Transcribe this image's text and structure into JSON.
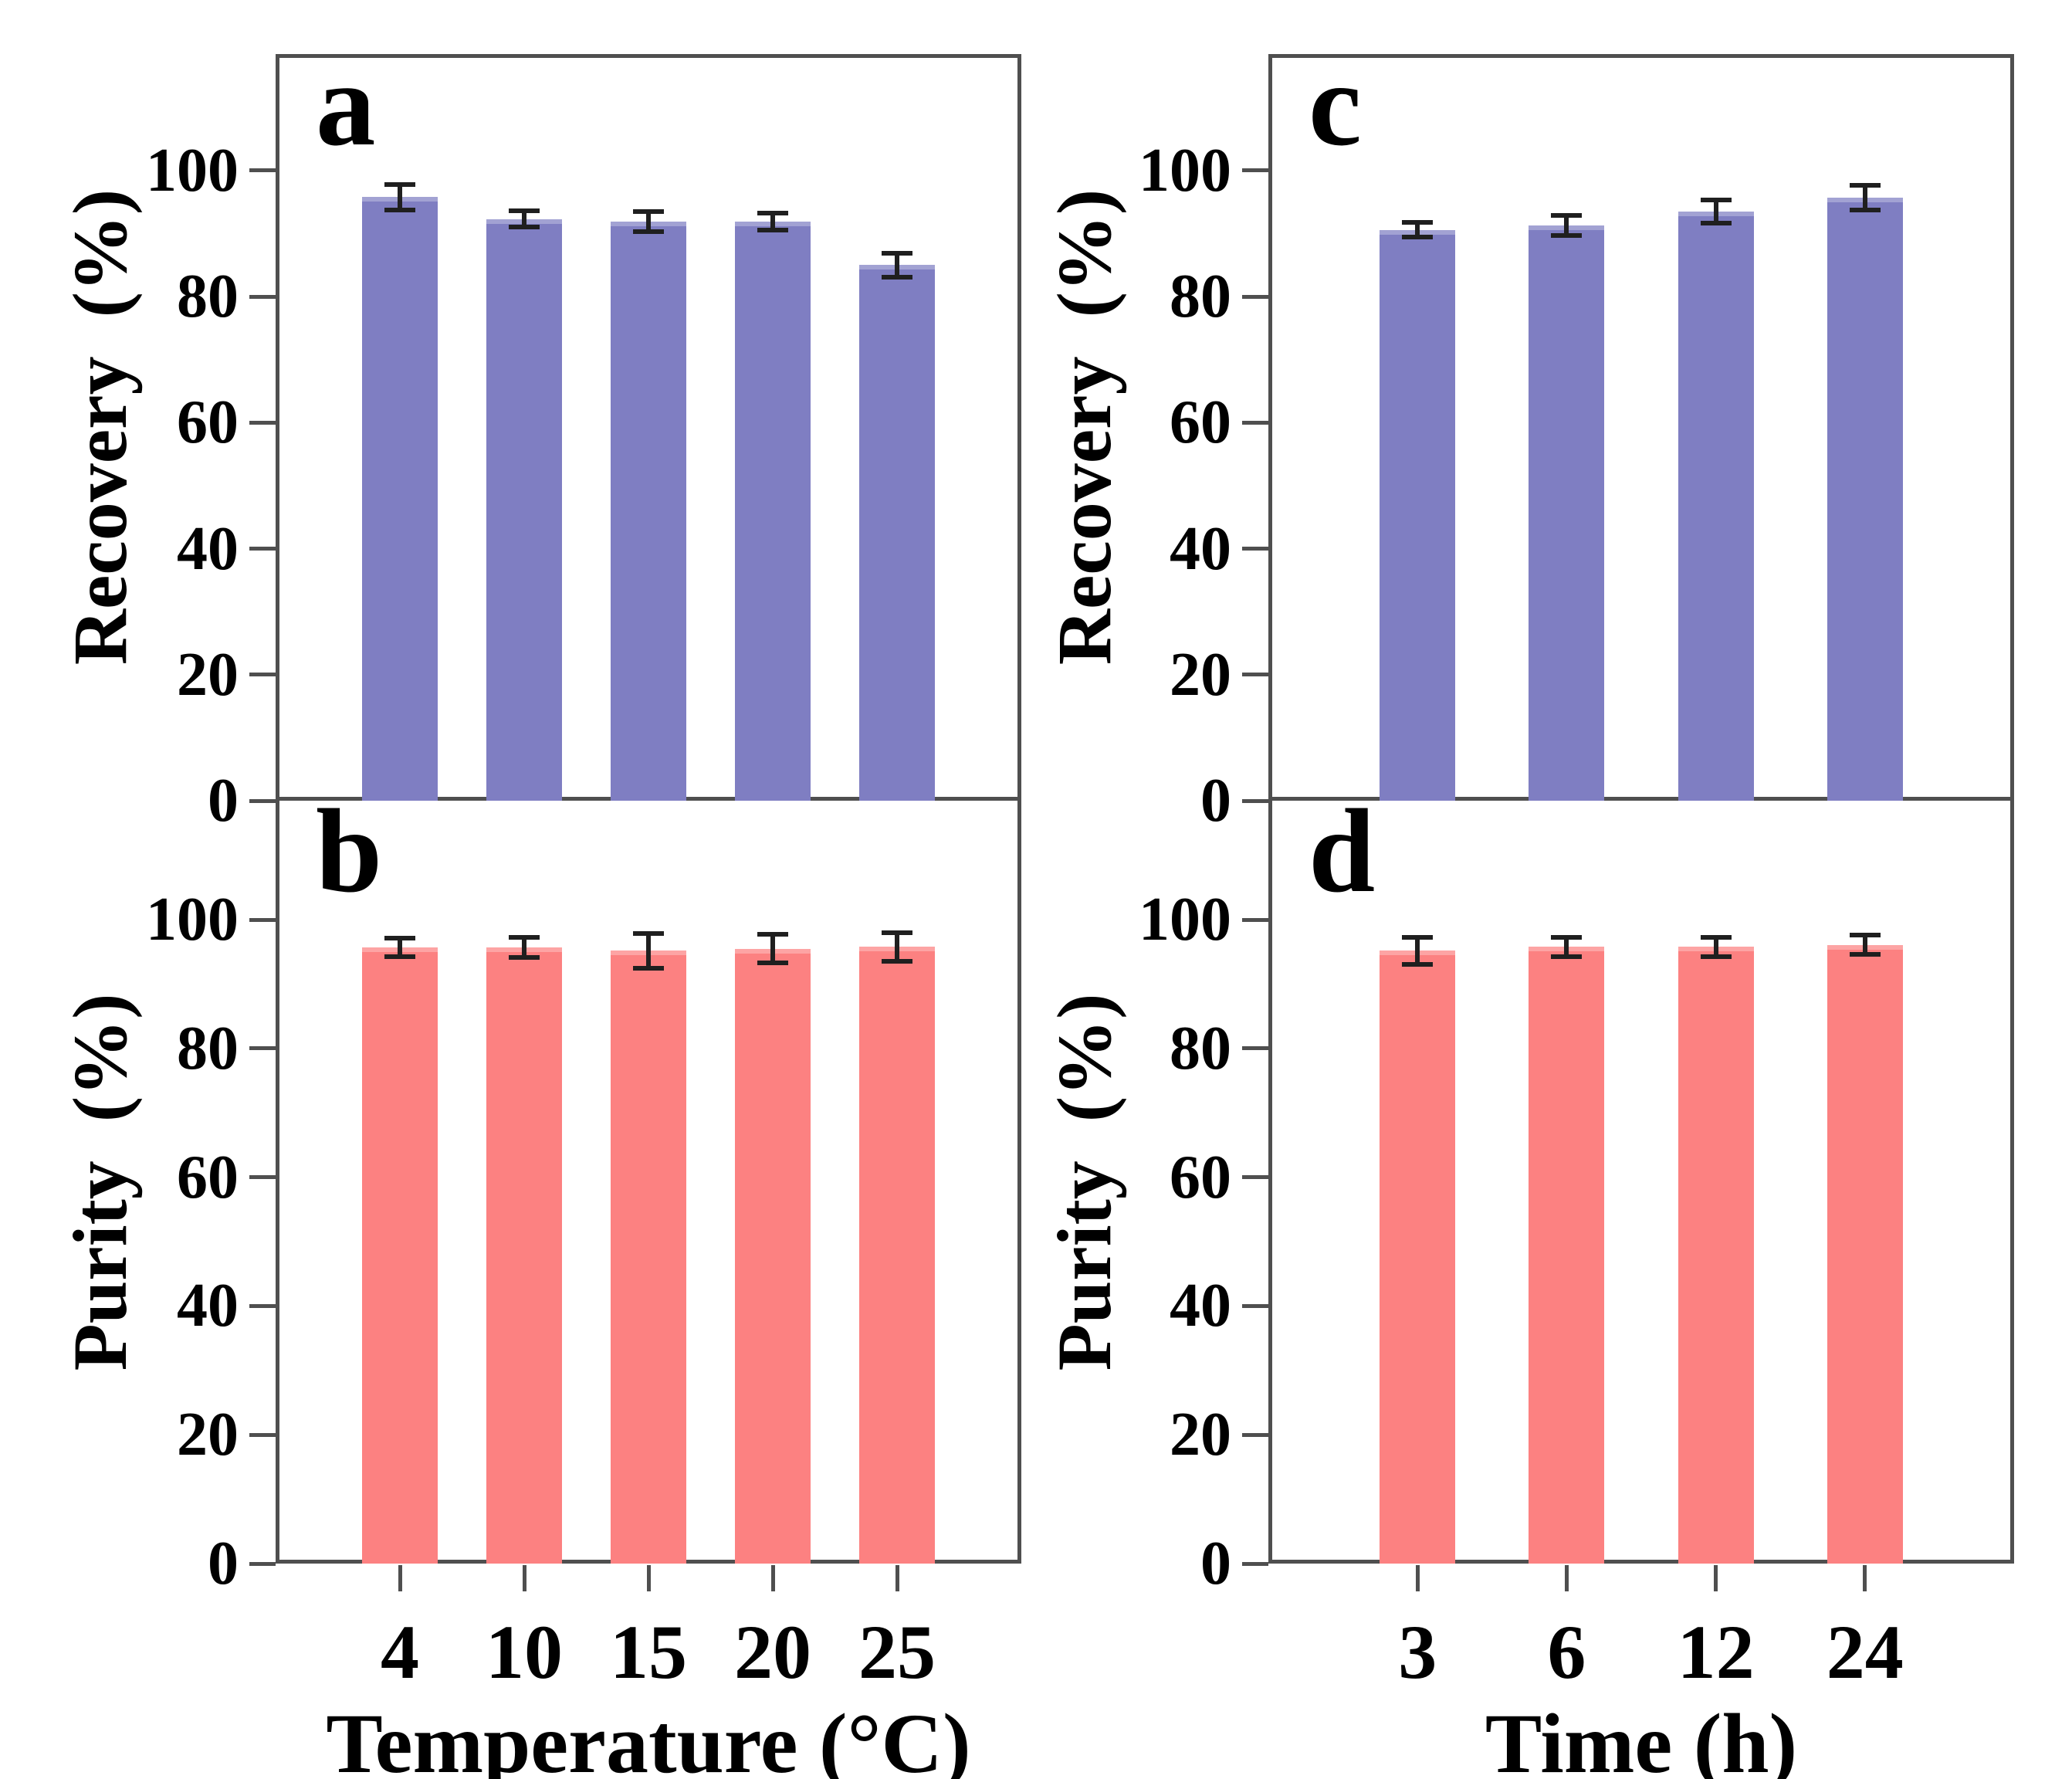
{
  "figure": {
    "background": "#ffffff",
    "palette": {
      "recovery_bar": "#7f7ec2",
      "purity_bar": "#fc8181",
      "axis_line": "#4f4f4f",
      "error_bar": "#1f1f1f",
      "text": "#000000"
    }
  },
  "chart_data": [
    {
      "panel": "a",
      "type": "bar",
      "position": "top-left",
      "ylabel": "Recovery  (%)",
      "xlabel": "",
      "categories": [
        "4",
        "10",
        "15",
        "20",
        "25"
      ],
      "values": [
        95.8,
        92.3,
        91.9,
        91.9,
        85.0
      ],
      "errors": [
        2.0,
        1.3,
        1.6,
        1.4,
        1.9
      ],
      "yticks": [
        0,
        20,
        40,
        60,
        80,
        100
      ],
      "ylim": [
        0,
        118.5
      ],
      "grid": false,
      "legend": "none",
      "bar_color_key": "recovery_bar"
    },
    {
      "panel": "b",
      "type": "bar",
      "position": "bottom-left",
      "ylabel": "Purity  (%)",
      "xlabel": "Temperature (°C)",
      "categories": [
        "4",
        "10",
        "15",
        "20",
        "25"
      ],
      "values": [
        95.7,
        95.7,
        95.2,
        95.5,
        95.8
      ],
      "errors": [
        1.4,
        1.6,
        2.7,
        2.2,
        2.2
      ],
      "yticks": [
        0,
        20,
        40,
        60,
        80,
        100
      ],
      "ylim": [
        0,
        118.5
      ],
      "grid": false,
      "legend": "none",
      "bar_color_key": "purity_bar"
    },
    {
      "panel": "c",
      "type": "bar",
      "position": "top-right",
      "ylabel": "Recovery  (%)",
      "xlabel": "",
      "categories": [
        "3",
        "6",
        "12",
        "24"
      ],
      "values": [
        90.6,
        91.3,
        93.5,
        95.7
      ],
      "errors": [
        1.2,
        1.6,
        1.8,
        2.0
      ],
      "yticks": [
        0,
        20,
        40,
        60,
        80,
        100
      ],
      "ylim": [
        0,
        118.5
      ],
      "grid": false,
      "legend": "none",
      "bar_color_key": "recovery_bar"
    },
    {
      "panel": "d",
      "type": "bar",
      "position": "bottom-right",
      "ylabel": "Purity  (%)",
      "xlabel": "Time (h)",
      "categories": [
        "3",
        "6",
        "12",
        "24"
      ],
      "values": [
        95.2,
        95.8,
        95.8,
        96.1
      ],
      "errors": [
        2.1,
        1.5,
        1.5,
        1.5
      ],
      "yticks": [
        0,
        20,
        40,
        60,
        80,
        100
      ],
      "ylim": [
        0,
        118.5
      ],
      "grid": false,
      "legend": "none",
      "bar_color_key": "purity_bar"
    }
  ]
}
